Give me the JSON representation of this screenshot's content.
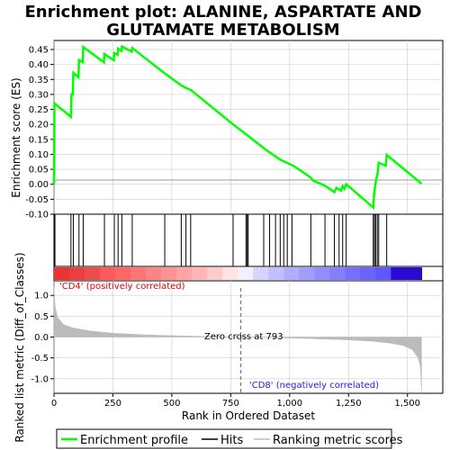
{
  "chart_data": {
    "title_line1": "Enrichment plot: ALANINE, ASPARTATE AND",
    "title_line2": "GLUTAMATE METABOLISM",
    "type": "line",
    "xlabel": "Rank in Ordered Dataset",
    "ylabel_top": "Enrichment score (ES)",
    "ylabel_bottom": "Ranked list metric (Diff_of_Classes)",
    "xlim": [
      0,
      1650
    ],
    "x_ticks": [
      0,
      250,
      500,
      750,
      1000,
      1250,
      1500
    ],
    "x_tick_labels": [
      "0",
      "250",
      "500",
      "750",
      "1,000",
      "1,250",
      "1,500"
    ],
    "es_ylim": [
      -0.1,
      0.48
    ],
    "es_ticks": [
      -0.1,
      -0.05,
      0.0,
      0.05,
      0.1,
      0.15,
      0.2,
      0.25,
      0.3,
      0.35,
      0.4,
      0.45
    ],
    "es_tick_labels": [
      "-0.10",
      "-0.05",
      "0.00",
      "0.05",
      "0.10",
      "0.15",
      "0.20",
      "0.25",
      "0.30",
      "0.35",
      "0.40",
      "0.45"
    ],
    "metric_ylim": [
      -1.35,
      1.35
    ],
    "metric_ticks": [
      -1.0,
      -0.5,
      0.0,
      0.5,
      1.0
    ],
    "metric_tick_labels": [
      "-1.0",
      "-0.5",
      "0.0",
      "0.5",
      "1.0"
    ],
    "es_curve": [
      [
        0,
        0.0
      ],
      [
        2,
        0.27
      ],
      [
        72,
        0.225
      ],
      [
        74,
        0.3
      ],
      [
        80,
        0.3
      ],
      [
        82,
        0.372
      ],
      [
        104,
        0.357
      ],
      [
        106,
        0.415
      ],
      [
        122,
        0.408
      ],
      [
        124,
        0.458
      ],
      [
        212,
        0.407
      ],
      [
        214,
        0.435
      ],
      [
        254,
        0.414
      ],
      [
        256,
        0.438
      ],
      [
        270,
        0.432
      ],
      [
        272,
        0.453
      ],
      [
        286,
        0.445
      ],
      [
        288,
        0.46
      ],
      [
        330,
        0.443
      ],
      [
        332,
        0.455
      ],
      [
        470,
        0.37
      ],
      [
        540,
        0.33
      ],
      [
        560,
        0.322
      ],
      [
        580,
        0.315
      ],
      [
        760,
        0.2
      ],
      [
        815,
        0.167
      ],
      [
        900,
        0.115
      ],
      [
        960,
        0.082
      ],
      [
        1020,
        0.06
      ],
      [
        1090,
        0.022
      ],
      [
        1100,
        0.012
      ],
      [
        1150,
        -0.005
      ],
      [
        1190,
        -0.026
      ],
      [
        1198,
        -0.012
      ],
      [
        1218,
        -0.021
      ],
      [
        1225,
        -0.006
      ],
      [
        1232,
        -0.015
      ],
      [
        1240,
        0.0
      ],
      [
        1355,
        -0.078
      ],
      [
        1358,
        -0.04
      ],
      [
        1363,
        -0.003
      ],
      [
        1368,
        0.018
      ],
      [
        1373,
        0.035
      ],
      [
        1378,
        0.072
      ],
      [
        1408,
        0.062
      ],
      [
        1412,
        0.098
      ],
      [
        1560,
        0.002
      ]
    ],
    "hits": [
      4,
      72,
      82,
      106,
      124,
      214,
      256,
      272,
      288,
      332,
      470,
      540,
      560,
      580,
      760,
      815,
      820,
      824,
      890,
      915,
      940,
      960,
      975,
      990,
      1010,
      1090,
      1150,
      1190,
      1210,
      1225,
      1240,
      1355,
      1360,
      1365,
      1372,
      1378,
      1412
    ],
    "ranked_metric": [
      [
        0,
        1.2
      ],
      [
        5,
        0.72
      ],
      [
        15,
        0.48
      ],
      [
        40,
        0.3
      ],
      [
        80,
        0.22
      ],
      [
        150,
        0.15
      ],
      [
        250,
        0.09
      ],
      [
        400,
        0.05
      ],
      [
        600,
        0.02
      ],
      [
        793,
        0.0
      ],
      [
        950,
        -0.015
      ],
      [
        1100,
        -0.04
      ],
      [
        1250,
        -0.07
      ],
      [
        1350,
        -0.1
      ],
      [
        1420,
        -0.14
      ],
      [
        1480,
        -0.2
      ],
      [
        1520,
        -0.3
      ],
      [
        1545,
        -0.5
      ],
      [
        1555,
        -0.7
      ],
      [
        1560,
        -1.3
      ]
    ],
    "zero_cross_rank": 793,
    "zero_cross_label": "Zero cross at 793",
    "positive_label": "'CD4' (positively correlated)",
    "negative_label": "'CD8' (negatively correlated)",
    "n_genes": 1560,
    "legend": [
      {
        "label": "Enrichment profile"
      },
      {
        "label": "Hits"
      },
      {
        "label": "Ranking metric scores"
      }
    ],
    "colors": {
      "es_line": "#00ff00",
      "hits": "#000000",
      "metric_fill": "#bbbbbb",
      "grid": "#cccccc",
      "zero_line": "#999999"
    }
  }
}
